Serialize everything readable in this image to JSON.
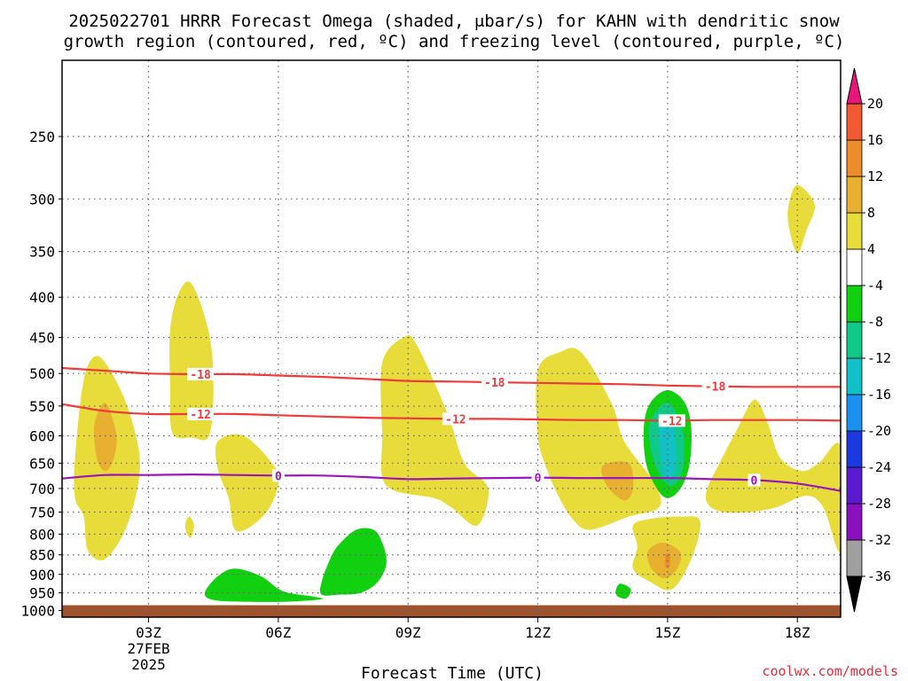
{
  "title_line1": "2025022701 HRRR Forecast Omega (shaded, μbar/s) for KAHN with dendritic snow",
  "title_line2": "growth region (contoured, red, ºC) and freezing level (contoured, purple, ºC)",
  "credit": "coolwx.com/models",
  "chart_data": {
    "type": "contour",
    "title": "2025022701 HRRR Forecast Omega (shaded, μbar/s) for KAHN with dendritic snow growth region (contoured, red, ºC) and freezing level (contoured, purple, ºC)",
    "xlabel": "Forecast Time (UTC)",
    "ylabel": "",
    "x_unit": "forecast hour from 2025-02-27 00Z",
    "xlim": [
      1,
      19
    ],
    "x_ticks": [
      {
        "hour": 3,
        "label": "03Z",
        "date_line1": "27FEB",
        "date_line2": "2025"
      },
      {
        "hour": 6,
        "label": "06Z"
      },
      {
        "hour": 9,
        "label": "09Z"
      },
      {
        "hour": 12,
        "label": "12Z"
      },
      {
        "hour": 15,
        "label": "15Z"
      },
      {
        "hour": 18,
        "label": "18Z"
      }
    ],
    "y_unit": "pressure (hPa)",
    "y_scale": "log",
    "y_reversed": true,
    "ylim": [
      1020,
      200
    ],
    "y_ticks": [
      "250",
      "300",
      "350",
      "400",
      "450",
      "500",
      "550",
      "600",
      "650",
      "700",
      "750",
      "800",
      "850",
      "900",
      "950",
      "1000"
    ],
    "grid": true,
    "grid_style": "dotted",
    "ground_fill": {
      "top_hpa": 985,
      "color": "#a0522d"
    },
    "colorbar": {
      "levels": [
        "-36",
        "-32",
        "-28",
        "-24",
        "-20",
        "-16",
        "-12",
        "-8",
        "-4",
        "4",
        "8",
        "12",
        "16",
        "20"
      ],
      "colors": [
        "#a0a0a0",
        "#8a10c0",
        "#5a1ad0",
        "#1a3ae0",
        "#1a90f0",
        "#12c0c8",
        "#10c888",
        "#10d010",
        "#ffffff",
        "#e8dc3a",
        "#e8b030",
        "#ec8c2c",
        "#f05a32",
        "#f43c3c"
      ],
      "under_color": "#000000",
      "over_color": "#e8157a"
    },
    "shaded_regions": [
      {
        "value_class": "4 to 8",
        "color": "#e8dc3a",
        "polygon": [
          [
            1.3,
            640
          ],
          [
            1.5,
            510
          ],
          [
            1.8,
            475
          ],
          [
            2.2,
            505
          ],
          [
            2.6,
            570
          ],
          [
            2.8,
            660
          ],
          [
            2.5,
            780
          ],
          [
            2.0,
            860
          ],
          [
            1.6,
            840
          ],
          [
            1.5,
            760
          ],
          [
            1.3,
            720
          ]
        ]
      },
      {
        "value_class": "8 to 12",
        "color": "#e8b030",
        "polygon": [
          [
            1.75,
            580
          ],
          [
            2.0,
            545
          ],
          [
            2.25,
            595
          ],
          [
            2.2,
            640
          ],
          [
            2.0,
            665
          ],
          [
            1.8,
            640
          ]
        ]
      },
      {
        "value_class": "4 to 8",
        "color": "#e8dc3a",
        "polygon": [
          [
            3.5,
            440
          ],
          [
            3.7,
            395
          ],
          [
            4.0,
            385
          ],
          [
            4.4,
            445
          ],
          [
            4.5,
            520
          ],
          [
            4.4,
            600
          ],
          [
            4.0,
            603
          ],
          [
            3.55,
            595
          ],
          [
            3.5,
            520
          ]
        ]
      },
      {
        "value_class": "4 to 8",
        "color": "#e8dc3a",
        "polygon": [
          [
            3.85,
            775
          ],
          [
            3.95,
            760
          ],
          [
            4.05,
            780
          ],
          [
            3.98,
            808
          ],
          [
            3.88,
            798
          ]
        ]
      },
      {
        "value_class": "4 to 8",
        "color": "#e8dc3a",
        "polygon": [
          [
            4.6,
            610
          ],
          [
            5.2,
            600
          ],
          [
            5.9,
            655
          ],
          [
            6.0,
            690
          ],
          [
            5.8,
            740
          ],
          [
            5.4,
            780
          ],
          [
            5.0,
            790
          ],
          [
            4.85,
            720
          ],
          [
            4.6,
            660
          ]
        ]
      },
      {
        "value_class": "4 to 8",
        "color": "#e8dc3a",
        "polygon": [
          [
            8.4,
            485
          ],
          [
            8.9,
            450
          ],
          [
            9.2,
            460
          ],
          [
            9.9,
            560
          ],
          [
            10.3,
            650
          ],
          [
            10.85,
            700
          ],
          [
            10.6,
            780
          ],
          [
            10.0,
            740
          ],
          [
            9.6,
            720
          ],
          [
            8.7,
            705
          ],
          [
            8.4,
            675
          ],
          [
            8.4,
            600
          ]
        ]
      },
      {
        "value_class": "4 to 8",
        "color": "#e8dc3a",
        "polygon": [
          [
            12.0,
            495
          ],
          [
            12.5,
            470
          ],
          [
            13.0,
            470
          ],
          [
            13.7,
            545
          ],
          [
            14.0,
            610
          ],
          [
            14.7,
            690
          ],
          [
            14.8,
            740
          ],
          [
            14.1,
            760
          ],
          [
            13.2,
            790
          ],
          [
            12.8,
            765
          ],
          [
            12.5,
            720
          ],
          [
            12.2,
            660
          ],
          [
            12.0,
            600
          ]
        ]
      },
      {
        "value_class": "8 to 12",
        "color": "#e8b030",
        "polygon": [
          [
            13.5,
            655
          ],
          [
            14.1,
            650
          ],
          [
            14.2,
            700
          ],
          [
            14.0,
            725
          ],
          [
            13.6,
            695
          ]
        ]
      },
      {
        "value_class": "4 to 8",
        "color": "#e8dc3a",
        "polygon": [
          [
            14.2,
            780
          ],
          [
            14.6,
            765
          ],
          [
            15.3,
            760
          ],
          [
            15.75,
            770
          ],
          [
            15.55,
            860
          ],
          [
            15.1,
            940
          ],
          [
            14.6,
            920
          ],
          [
            14.2,
            885
          ],
          [
            14.3,
            830
          ]
        ]
      },
      {
        "value_class": "8 to 12",
        "color": "#e8b030",
        "polygon": [
          [
            14.55,
            840
          ],
          [
            14.9,
            820
          ],
          [
            15.3,
            845
          ],
          [
            15.2,
            890
          ],
          [
            14.9,
            910
          ],
          [
            14.6,
            880
          ]
        ]
      },
      {
        "value_class": "12 to 16",
        "color": "#ec8c2c",
        "polygon": [
          [
            14.95,
            850
          ],
          [
            15.05,
            850
          ],
          [
            15.05,
            880
          ],
          [
            14.95,
            880
          ]
        ]
      },
      {
        "value_class": "-8 to -4",
        "color": "#10d010",
        "polygon": [
          [
            14.45,
            585
          ],
          [
            14.6,
            545
          ],
          [
            15.0,
            525
          ],
          [
            15.4,
            545
          ],
          [
            15.55,
            590
          ],
          [
            15.5,
            655
          ],
          [
            15.3,
            700
          ],
          [
            15.0,
            720
          ],
          [
            14.75,
            700
          ],
          [
            14.5,
            650
          ]
        ]
      },
      {
        "value_class": "-12 to -8",
        "color": "#10c888",
        "polygon": [
          [
            14.6,
            575
          ],
          [
            15.0,
            545
          ],
          [
            15.35,
            590
          ],
          [
            15.35,
            660
          ],
          [
            15.1,
            695
          ],
          [
            14.8,
            670
          ],
          [
            14.6,
            620
          ]
        ]
      },
      {
        "value_class": "-16 to -12",
        "color": "#12c0c8",
        "polygon": [
          [
            14.8,
            585
          ],
          [
            15.1,
            575
          ],
          [
            15.2,
            625
          ],
          [
            15.15,
            670
          ],
          [
            14.95,
            680
          ],
          [
            14.85,
            640
          ]
        ]
      },
      {
        "value_class": "4 to 8",
        "color": "#e8dc3a",
        "polygon": [
          [
            15.9,
            705
          ],
          [
            16.2,
            650
          ],
          [
            16.6,
            590
          ],
          [
            17.0,
            540
          ],
          [
            17.3,
            575
          ],
          [
            17.6,
            640
          ],
          [
            18.1,
            665
          ],
          [
            18.5,
            650
          ],
          [
            19.0,
            620
          ],
          [
            19.0,
            840
          ],
          [
            18.6,
            740
          ],
          [
            18.2,
            715
          ],
          [
            17.5,
            740
          ],
          [
            16.9,
            750
          ],
          [
            16.3,
            750
          ],
          [
            15.95,
            735
          ]
        ]
      },
      {
        "value_class": "4 to 8",
        "color": "#e8dc3a",
        "polygon": [
          [
            17.8,
            305
          ],
          [
            18.0,
            288
          ],
          [
            18.4,
            305
          ],
          [
            18.2,
            330
          ],
          [
            18.0,
            352
          ],
          [
            17.8,
            325
          ]
        ]
      },
      {
        "value_class": "-8 to -4",
        "color": "#10d010",
        "polygon": [
          [
            4.3,
            950
          ],
          [
            4.6,
            905
          ],
          [
            5.0,
            885
          ],
          [
            5.6,
            905
          ],
          [
            6.1,
            945
          ],
          [
            6.8,
            960
          ],
          [
            7.0,
            968
          ],
          [
            6.2,
            975
          ],
          [
            5.2,
            975
          ],
          [
            4.5,
            970
          ]
        ]
      },
      {
        "value_class": "-8 to -4",
        "color": "#10d010",
        "polygon": [
          [
            7.2,
            860
          ],
          [
            7.4,
            825
          ],
          [
            7.8,
            790
          ],
          [
            8.2,
            790
          ],
          [
            8.4,
            820
          ],
          [
            8.5,
            870
          ],
          [
            8.3,
            920
          ],
          [
            7.9,
            950
          ],
          [
            7.4,
            955
          ],
          [
            7.0,
            955
          ],
          [
            7.0,
            920
          ]
        ]
      },
      {
        "value_class": "-8 to -4",
        "color": "#10d010",
        "polygon": [
          [
            13.8,
            945
          ],
          [
            13.9,
            925
          ],
          [
            14.15,
            940
          ],
          [
            14.05,
            965
          ],
          [
            13.85,
            960
          ]
        ]
      }
    ],
    "contours": [
      {
        "name": "-18",
        "color": "#ee3b3b",
        "unit": "ºC",
        "x": [
          1,
          2,
          3,
          4,
          5,
          6,
          7,
          8,
          9,
          10,
          11,
          12,
          13,
          14,
          15,
          16,
          17,
          18,
          19
        ],
        "y": [
          492,
          496,
          500,
          501,
          501,
          503,
          505,
          508,
          511,
          512,
          513,
          514,
          515,
          516,
          518,
          519,
          520,
          520,
          520
        ],
        "labels": [
          {
            "x": 4.2,
            "text": "-18"
          },
          {
            "x": 11.0,
            "text": "-18"
          },
          {
            "x": 16.1,
            "text": "-18"
          }
        ]
      },
      {
        "name": "-12",
        "color": "#ee3b3b",
        "unit": "ºC",
        "x": [
          1,
          2,
          3,
          4,
          5,
          6,
          7,
          8,
          9,
          10,
          11,
          12,
          13,
          14,
          15,
          16,
          17,
          18,
          19
        ],
        "y": [
          547,
          558,
          563,
          563,
          563,
          565,
          567,
          569,
          570,
          571,
          571,
          572,
          573,
          573,
          574,
          573,
          573,
          573,
          574
        ],
        "labels": [
          {
            "x": 4.2,
            "text": "-12"
          },
          {
            "x": 10.1,
            "text": "-12"
          },
          {
            "x": 15.1,
            "text": "-12"
          }
        ]
      },
      {
        "name": "0",
        "color": "#9a16b8",
        "unit": "ºC",
        "x": [
          1,
          2,
          3,
          4,
          5,
          6,
          7,
          8,
          9,
          10,
          11,
          12,
          13,
          14,
          15,
          16,
          17,
          18,
          19
        ],
        "y": [
          680,
          673,
          673,
          672,
          673,
          674,
          674,
          677,
          681,
          680,
          679,
          678,
          679,
          679,
          679,
          681,
          683,
          690,
          705
        ],
        "labels": [
          {
            "x": 6.0,
            "text": "0"
          },
          {
            "x": 12.0,
            "text": "0"
          },
          {
            "x": 17.0,
            "text": "0"
          }
        ]
      }
    ]
  }
}
